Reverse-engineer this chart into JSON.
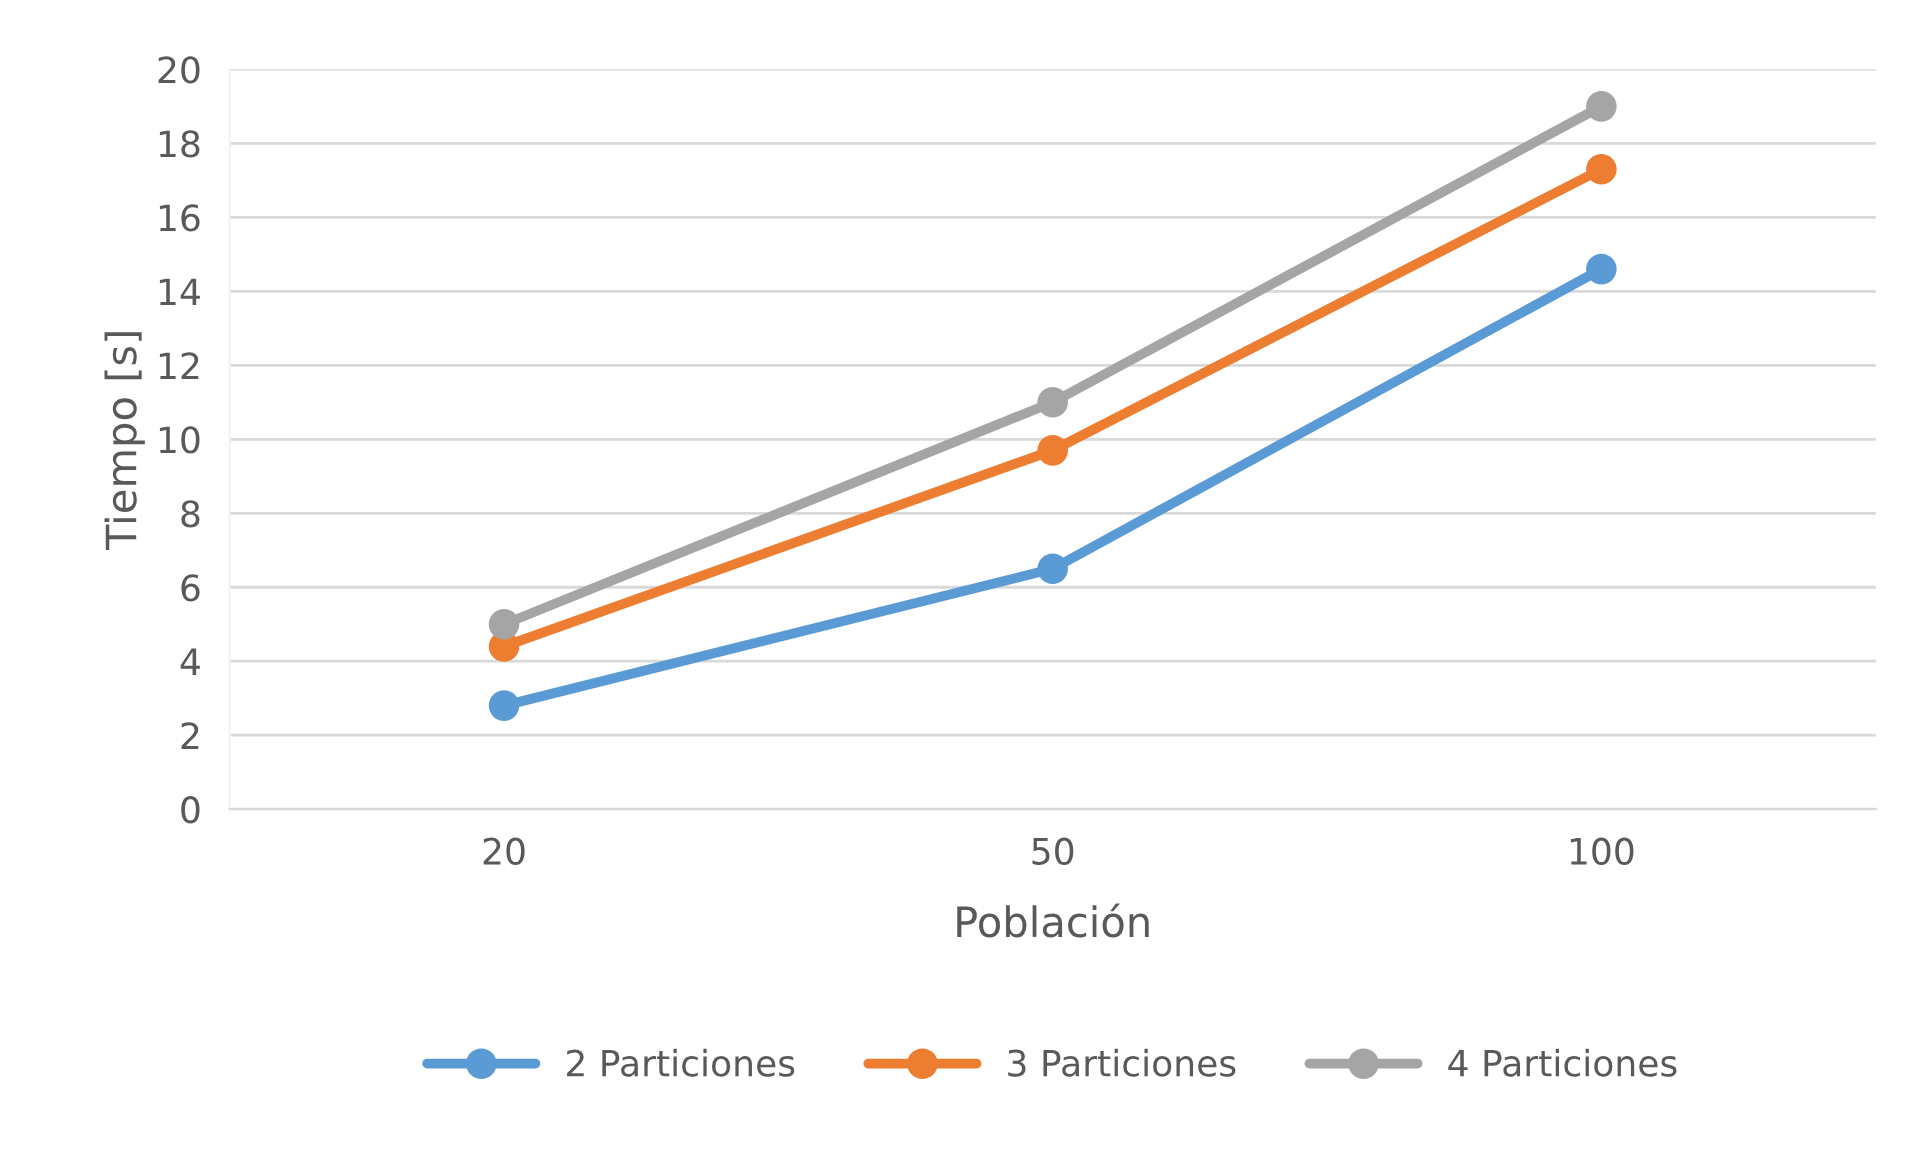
{
  "chart_data": {
    "type": "line",
    "xlabel": "Población",
    "ylabel": "Tiempo [s]",
    "categories": [
      "20",
      "50",
      "100"
    ],
    "series": [
      {
        "name": "2 Particiones",
        "color": "#5b9bd5",
        "values": [
          2.8,
          6.5,
          14.6
        ]
      },
      {
        "name": "3 Particiones",
        "color": "#ed7d31",
        "values": [
          4.4,
          9.7,
          17.3
        ]
      },
      {
        "name": "4 Particiones",
        "color": "#a5a5a5",
        "values": [
          5.0,
          11.0,
          19.0
        ]
      }
    ],
    "ylim": [
      0,
      20
    ],
    "yticks": [
      0,
      2,
      4,
      6,
      8,
      10,
      12,
      14,
      16,
      18,
      20
    ],
    "grid": "y",
    "legend": "bottom",
    "marker": "circle",
    "line_style": "solid"
  }
}
